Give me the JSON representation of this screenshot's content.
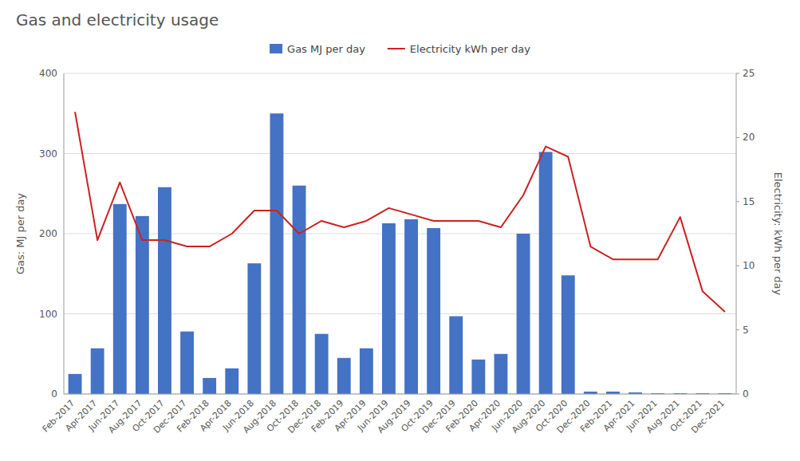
{
  "chart_data": {
    "type": "bar",
    "title": "Gas and electricity usage",
    "ylabel": "Gas: MJ per day",
    "y2label": "Electricity: kWh per day",
    "categories": [
      "Feb-2017",
      "Apr-2017",
      "Jun-2017",
      "Aug-2017",
      "Oct-2017",
      "Dec-2017",
      "Feb-2018",
      "Apr-2018",
      "Jun-2018",
      "Aug-2018",
      "Oct-2018",
      "Dec-2018",
      "Feb-2019",
      "Apr-2019",
      "Jun-2019",
      "Aug-2019",
      "Oct-2019",
      "Dec-2019",
      "Feb-2020",
      "Apr-2020",
      "Jun-2020",
      "Aug-2020",
      "Oct-2020",
      "Dec-2020",
      "Feb-2021",
      "Apr-2021",
      "Jun-2021",
      "Aug-2021",
      "Oct-2021",
      "Dec-2021"
    ],
    "series": [
      {
        "name": "Gas MJ per day",
        "type": "bar",
        "color": "#4472C4",
        "values": [
          25,
          57,
          237,
          222,
          258,
          78,
          20,
          32,
          163,
          350,
          260,
          75,
          45,
          57,
          213,
          218,
          207,
          97,
          43,
          50,
          200,
          302,
          148,
          3,
          3,
          2,
          1,
          1,
          1,
          1
        ]
      },
      {
        "name": "Electricity kWh per day",
        "type": "line",
        "color": "#CC2222",
        "axis": "y2",
        "values": [
          22.0,
          12.0,
          16.5,
          12.0,
          12.0,
          11.5,
          11.5,
          12.5,
          14.3,
          14.3,
          12.5,
          13.5,
          13.0,
          13.5,
          14.5,
          14.0,
          13.5,
          13.5,
          13.5,
          13.0,
          15.5,
          19.3,
          18.5,
          11.5,
          10.5,
          10.5,
          10.5,
          13.8,
          8.0,
          6.4
        ]
      }
    ],
    "ylim": [
      0,
      400
    ],
    "yticks": [
      0,
      100,
      200,
      300,
      400
    ],
    "y2lim": [
      0,
      25
    ],
    "y2ticks": [
      0,
      5,
      10,
      15,
      20,
      25
    ],
    "grid": true,
    "legend": "top"
  }
}
